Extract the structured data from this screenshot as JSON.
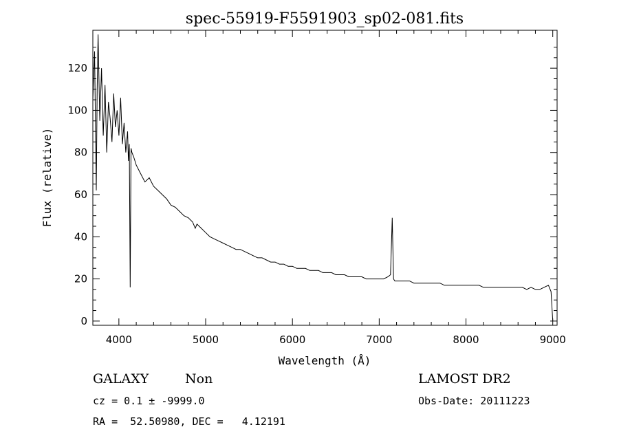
{
  "chart_data": {
    "type": "line",
    "title": "spec-55919-F5591903_sp02-081.fits",
    "xlabel": "Wavelength (Å)",
    "ylabel": "Flux (relative)",
    "xlim": [
      3700,
      9050
    ],
    "ylim": [
      -2,
      138
    ],
    "x_ticks": [
      4000,
      5000,
      6000,
      7000,
      8000,
      9000
    ],
    "y_ticks": [
      0,
      20,
      40,
      60,
      80,
      100,
      120
    ],
    "grid": false,
    "series": [
      {
        "x": [
          3700,
          3720,
          3740,
          3750,
          3760,
          3780,
          3800,
          3820,
          3840,
          3860,
          3880,
          3900,
          3920,
          3940,
          3960,
          3980,
          4000,
          4020,
          4040,
          4060,
          4080,
          4100,
          4110,
          4120,
          4130,
          4140,
          4150,
          4170,
          4200,
          4250,
          4300,
          4350,
          4400,
          4450,
          4500,
          4550,
          4600,
          4650,
          4700,
          4750,
          4800,
          4850,
          4880,
          4900,
          4950,
          5000,
          5050,
          5100,
          5150,
          5200,
          5250,
          5300,
          5350,
          5400,
          5450,
          5500,
          5550,
          5600,
          5650,
          5700,
          5750,
          5800,
          5850,
          5900,
          5950,
          6000,
          6050,
          6100,
          6150,
          6200,
          6250,
          6300,
          6350,
          6400,
          6450,
          6500,
          6550,
          6600,
          6650,
          6700,
          6750,
          6800,
          6850,
          6900,
          6950,
          7000,
          7050,
          7100,
          7130,
          7150,
          7165,
          7180,
          7200,
          7250,
          7300,
          7350,
          7400,
          7450,
          7500,
          7550,
          7600,
          7650,
          7700,
          7750,
          7800,
          7850,
          7900,
          7950,
          8000,
          8050,
          8100,
          8150,
          8200,
          8250,
          8300,
          8350,
          8400,
          8450,
          8500,
          8550,
          8600,
          8650,
          8700,
          8750,
          8800,
          8850,
          8900,
          8950,
          8980,
          9000
        ],
        "y": [
          105,
          128,
          62,
          110,
          136,
          95,
          120,
          88,
          112,
          80,
          104,
          96,
          85,
          108,
          92,
          100,
          88,
          106,
          84,
          94,
          80,
          90,
          76,
          84,
          16,
          82,
          80,
          78,
          74,
          70,
          66,
          68,
          64,
          62,
          60,
          58,
          55,
          54,
          52,
          50,
          49,
          47,
          44,
          46,
          44,
          42,
          40,
          39,
          38,
          37,
          36,
          35,
          34,
          34,
          33,
          32,
          31,
          30,
          30,
          29,
          28,
          28,
          27,
          27,
          26,
          26,
          25,
          25,
          25,
          24,
          24,
          24,
          23,
          23,
          23,
          22,
          22,
          22,
          21,
          21,
          21,
          21,
          20,
          20,
          20,
          20,
          20,
          21,
          22,
          49,
          20,
          19,
          19,
          19,
          19,
          19,
          18,
          18,
          18,
          18,
          18,
          18,
          18,
          17,
          17,
          17,
          17,
          17,
          17,
          17,
          17,
          17,
          16,
          16,
          16,
          16,
          16,
          16,
          16,
          16,
          16,
          16,
          15,
          16,
          15,
          15,
          16,
          17,
          14,
          0
        ]
      }
    ]
  },
  "info": {
    "obj_class": "GALAXY",
    "subclass": "Non",
    "survey": "LAMOST DR2",
    "cz_line": "cz = 0.1 ± -9999.0",
    "obs_date": "Obs-Date: 20111223",
    "coords": "RA =  52.50980, DEC =   4.12191"
  }
}
